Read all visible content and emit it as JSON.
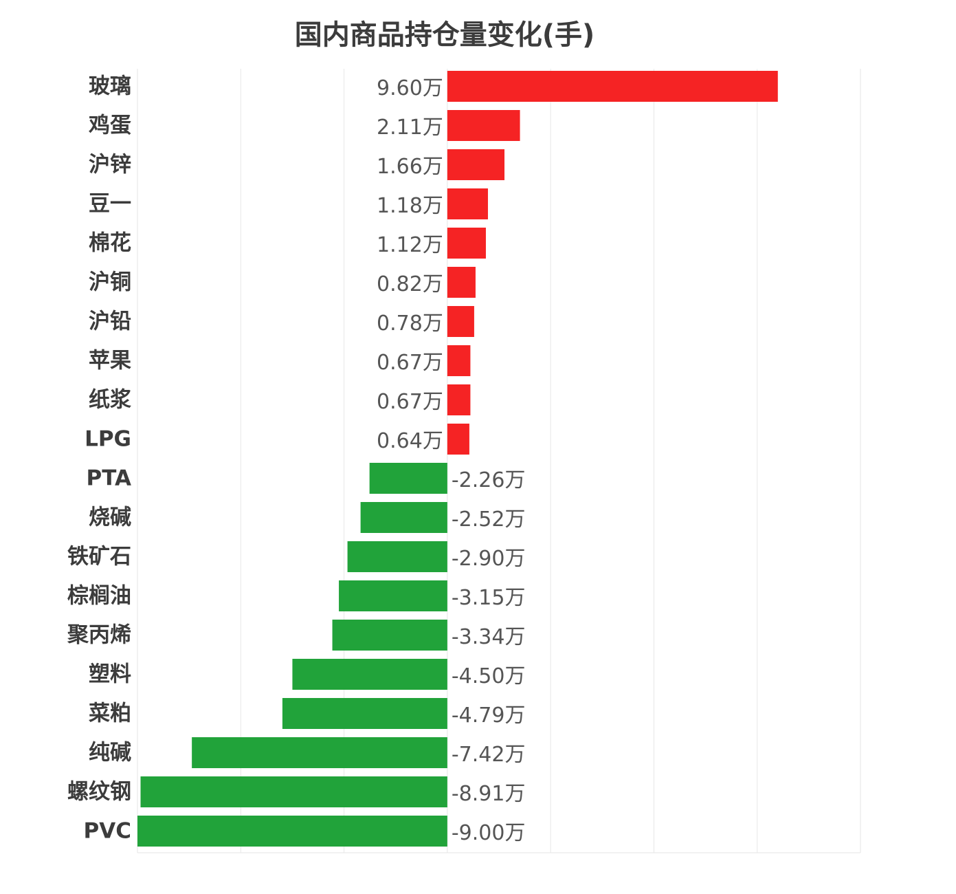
{
  "chart_data": {
    "type": "bar",
    "orientation": "horizontal",
    "title": "国内商品持仓量变化(手)",
    "categories": [
      "玻璃",
      "鸡蛋",
      "沪锌",
      "豆一",
      "棉花",
      "沪铜",
      "沪铅",
      "苹果",
      "纸浆",
      "LPG",
      "PTA",
      "烧碱",
      "铁矿石",
      "棕榈油",
      "聚丙烯",
      "塑料",
      "菜粕",
      "纯碱",
      "螺纹钢",
      "PVC"
    ],
    "values": [
      9.6,
      2.11,
      1.66,
      1.18,
      1.12,
      0.82,
      0.78,
      0.67,
      0.67,
      0.64,
      -2.26,
      -2.52,
      -2.9,
      -3.15,
      -3.34,
      -4.5,
      -4.79,
      -7.42,
      -8.91,
      -9.0
    ],
    "value_labels": [
      "9.60万",
      "2.11万",
      "1.66万",
      "1.18万",
      "1.12万",
      "0.82万",
      "0.78万",
      "0.67万",
      "0.67万",
      "0.64万",
      "-2.26万",
      "-2.52万",
      "-2.90万",
      "-3.15万",
      "-3.34万",
      "-4.50万",
      "-4.79万",
      "-7.42万",
      "-8.91万",
      "-9.00万"
    ],
    "unit": "万手",
    "xlim": [
      -9,
      12
    ],
    "grid": true,
    "colors": {
      "positive": "#f52324",
      "negative": "#21a33a",
      "grid": "#e6e6e6"
    }
  }
}
